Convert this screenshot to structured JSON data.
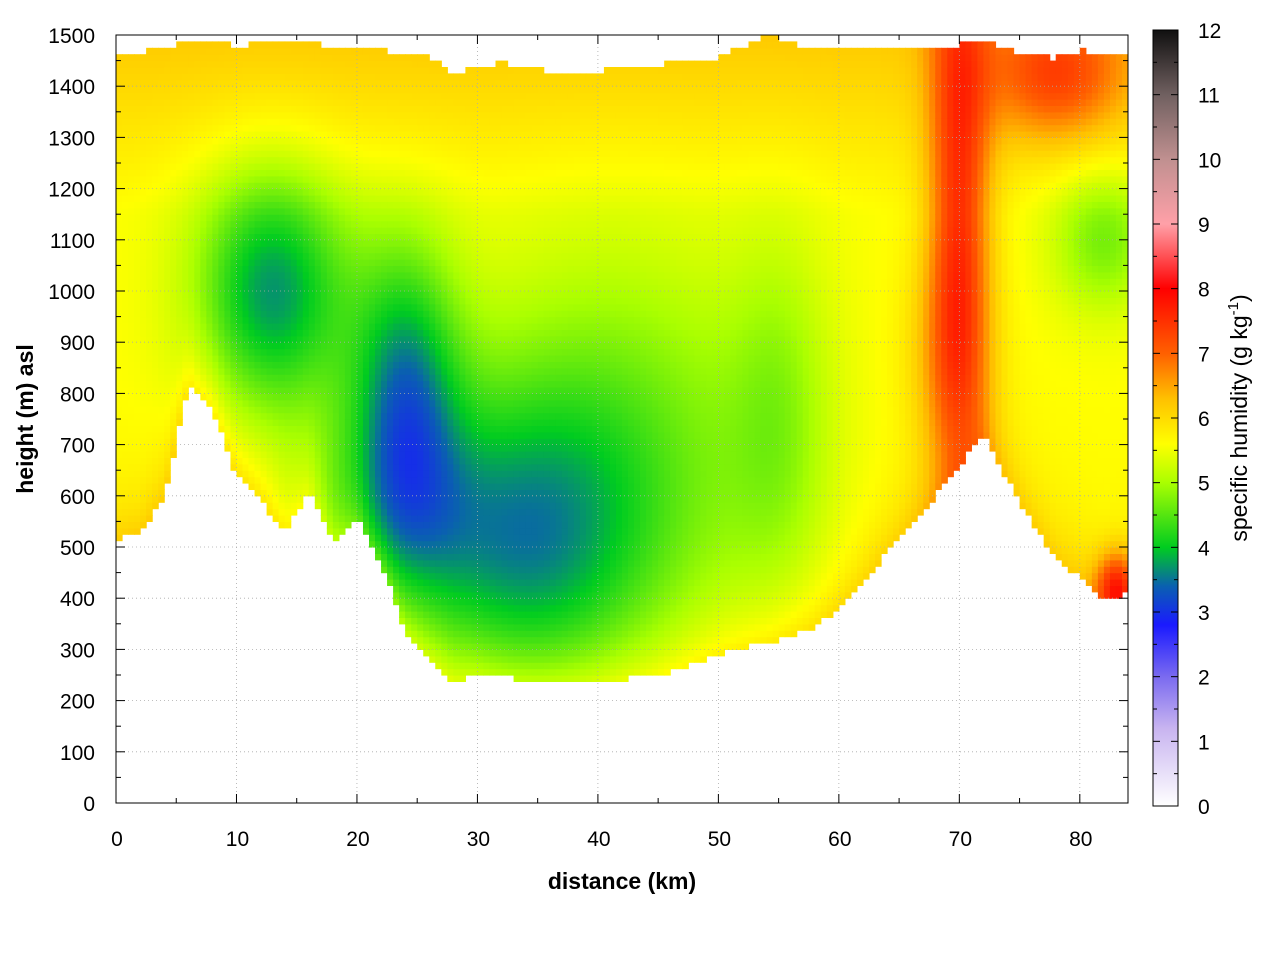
{
  "chart_data": {
    "type": "heatmap",
    "title": "",
    "xlabel": "distance (km)",
    "ylabel": "height (m) asl",
    "xlim": [
      0,
      84
    ],
    "ylim": [
      0,
      1500
    ],
    "x_ticks": [
      0,
      10,
      20,
      30,
      40,
      50,
      60,
      70,
      80
    ],
    "y_ticks": [
      0,
      100,
      200,
      300,
      400,
      500,
      600,
      700,
      800,
      900,
      1000,
      1100,
      1200,
      1300,
      1400,
      1500
    ],
    "grid": true,
    "colorbar": {
      "label_main": "specific humidity (g kg",
      "label_sup": "-1",
      "label_end": ")",
      "range": [
        0,
        12
      ],
      "ticks": [
        0,
        1,
        2,
        3,
        4,
        5,
        6,
        7,
        8,
        9,
        10,
        11,
        12
      ],
      "stops": [
        {
          "v": 0,
          "color": "#ffffff"
        },
        {
          "v": 1.2,
          "color": "#c8b4f0"
        },
        {
          "v": 2.0,
          "color": "#7a6af0"
        },
        {
          "v": 2.8,
          "color": "#1a1aff"
        },
        {
          "v": 3.4,
          "color": "#0a60b0"
        },
        {
          "v": 4.0,
          "color": "#00cc20"
        },
        {
          "v": 5.0,
          "color": "#aaff00"
        },
        {
          "v": 5.6,
          "color": "#ffff00"
        },
        {
          "v": 6.3,
          "color": "#ffc000"
        },
        {
          "v": 7.0,
          "color": "#ff6000"
        },
        {
          "v": 8.0,
          "color": "#ff0000"
        },
        {
          "v": 9.0,
          "color": "#ffa0a8"
        },
        {
          "v": 10.0,
          "color": "#c09090"
        },
        {
          "v": 11.0,
          "color": "#706060"
        },
        {
          "v": 12.0,
          "color": "#101010"
        }
      ]
    },
    "terrain": {
      "x": [
        0,
        2,
        4,
        6,
        8,
        10,
        12,
        14,
        16,
        18,
        20,
        22,
        24,
        26,
        28,
        30,
        35,
        40,
        45,
        50,
        55,
        58,
        60,
        62,
        64,
        66,
        68,
        70,
        72,
        74,
        76,
        78,
        80,
        82,
        84
      ],
      "height": [
        515,
        530,
        600,
        815,
        770,
        640,
        590,
        530,
        610,
        510,
        560,
        470,
        335,
        280,
        235,
        250,
        240,
        238,
        250,
        290,
        320,
        345,
        380,
        430,
        490,
        545,
        600,
        660,
        720,
        630,
        550,
        480,
        440,
        400,
        410
      ]
    },
    "top_surface": {
      "x": [
        0,
        4,
        6,
        10,
        14,
        18,
        22,
        26,
        28,
        32,
        36,
        40,
        44,
        50,
        54,
        58,
        62,
        66,
        70,
        72,
        74,
        78,
        80,
        84
      ],
      "height": [
        1455,
        1475,
        1490,
        1480,
        1485,
        1480,
        1470,
        1460,
        1425,
        1445,
        1430,
        1430,
        1440,
        1455,
        1500,
        1470,
        1470,
        1480,
        1480,
        1490,
        1470,
        1455,
        1470,
        1460
      ]
    },
    "blobs": [
      {
        "x": 13,
        "y": 1000,
        "sx": 4.5,
        "sy": 170,
        "amp": -1.9
      },
      {
        "x": 24,
        "y": 820,
        "sx": 3.2,
        "sy": 200,
        "amp": -1.7
      },
      {
        "x": 33,
        "y": 500,
        "sx": 7,
        "sy": 220,
        "amp": -1.5
      },
      {
        "x": 42,
        "y": 650,
        "sx": 9,
        "sy": 300,
        "amp": -1.0
      },
      {
        "x": 22,
        "y": 560,
        "sx": 5,
        "sy": 150,
        "amp": -1.0
      },
      {
        "x": 55,
        "y": 750,
        "sx": 3,
        "sy": 250,
        "amp": -0.6
      },
      {
        "x": 82,
        "y": 1100,
        "sx": 3,
        "sy": 100,
        "amp": -0.9
      },
      {
        "x": 70,
        "y": 1150,
        "sx": 1.8,
        "sy": 400,
        "amp": 1.8
      },
      {
        "x": 69,
        "y": 880,
        "sx": 2.5,
        "sy": 150,
        "amp": 0.6
      },
      {
        "x": 78,
        "y": 1420,
        "sx": 4,
        "sy": 90,
        "amp": 1.3
      },
      {
        "x": 83,
        "y": 420,
        "sx": 1.2,
        "sy": 50,
        "amp": 1.8
      }
    ]
  }
}
